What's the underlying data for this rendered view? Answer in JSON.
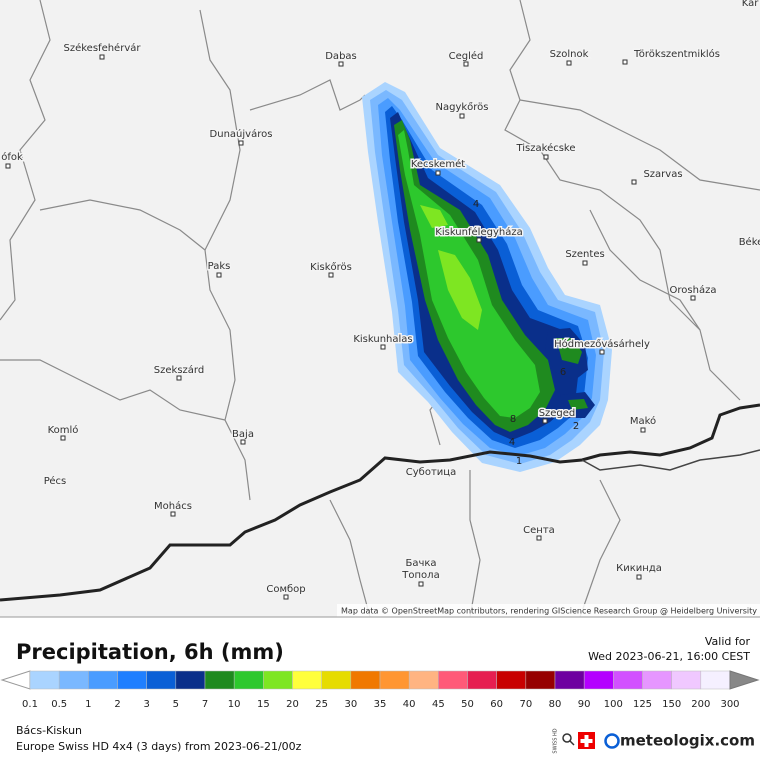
{
  "header": {
    "title": "Precipitation, 6h (mm)",
    "valid_label": "Valid for",
    "valid_time": "Wed 2023-06-21, 16:00 CEST"
  },
  "legend": {
    "ticks": [
      0.1,
      0.5,
      1,
      2,
      3,
      5,
      7,
      10,
      15,
      20,
      25,
      30,
      35,
      40,
      45,
      50,
      60,
      70,
      80,
      90,
      100,
      125,
      150,
      200,
      300
    ],
    "colors": [
      "#aad4ff",
      "#7ab8ff",
      "#4a9cff",
      "#1f7fff",
      "#0a5fd6",
      "#0a2f8a",
      "#1f8a1f",
      "#2dc82d",
      "#7ee622",
      "#ffff3c",
      "#e6dc00",
      "#f07800",
      "#ff9632",
      "#ffb482",
      "#ff5a78",
      "#e61e50",
      "#c80000",
      "#960000",
      "#6e00a0",
      "#b400ff",
      "#d250ff",
      "#e696ff",
      "#f0c8ff",
      "#f5f0ff"
    ]
  },
  "map": {
    "attribution": "Map data © OpenStreetMap contributors, rendering GIScience Research Group @ Heidelberg University",
    "places": [
      "Székesfehérvár",
      "Dabas",
      "Cegléd",
      "Szolnok",
      "Törökszentmiklós",
      "Nagykőrös",
      "Dunaújváros",
      "ófok",
      "Tiszakécske",
      "Kecskemét",
      "Szarvas",
      "Kiskunfélegyháza",
      "Paks",
      "Kiskőrös",
      "Szentes",
      "Orosháza",
      "Kiskunhalas",
      "Hódmezővásárhely",
      "Szekszárd",
      "Szeged",
      "Makó",
      "Komló",
      "Baja",
      "Pécs",
      "Суботица",
      "Mohács",
      "Сента",
      "Бачка",
      "Топола",
      "Кикинда",
      "Сомбор",
      "Kar",
      "Béke"
    ],
    "contour_labels": [
      "4",
      "8",
      "4",
      "1",
      "2",
      "6"
    ]
  },
  "footer": {
    "region": "Bács-Kiskun",
    "model": "Europe Swiss HD 4x4 (3 days) from  2023-06-21/00z",
    "brand": "meteologix.com",
    "badge": "SWISS HD"
  }
}
